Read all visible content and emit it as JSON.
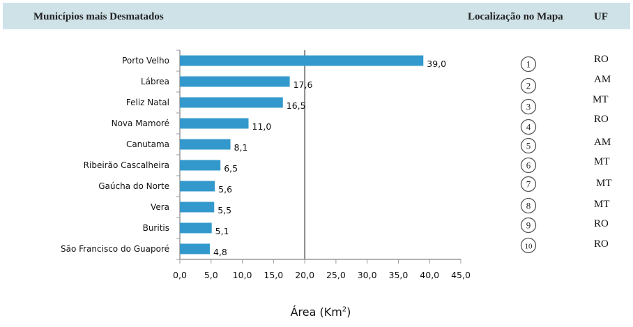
{
  "header": {
    "left_title": "Municípios mais Desmatados",
    "map_title": "Localização no Mapa",
    "uf_title": "UF"
  },
  "colors": {
    "bar": "#3399cc",
    "header_bg": "#cfe2e8",
    "grid": "#999999"
  },
  "chart_data": {
    "type": "bar",
    "orientation": "horizontal",
    "categories": [
      "Porto Velho",
      "Lábrea",
      "Feliz Natal",
      "Nova Mamoré",
      "Canutama",
      "Ribeirão Cascalheira",
      "Gaúcha do Norte",
      "Vera",
      "Buritis",
      "São Francisco do Guaporé"
    ],
    "values": [
      39.0,
      17.6,
      16.5,
      11.0,
      8.1,
      6.5,
      5.6,
      5.5,
      5.1,
      4.8
    ],
    "value_labels": [
      "39,0",
      "17,6",
      "16,5",
      "11,0",
      "8,1",
      "6,5",
      "5,6",
      "5,5",
      "5,1",
      "4,8"
    ],
    "xticks": [
      "0,0",
      "5,0",
      "10,0",
      "15,0",
      "20,0",
      "25,0",
      "30,0",
      "35,0",
      "40,0",
      "45,0"
    ],
    "xlim": [
      0,
      45
    ],
    "xlabel": "Área (Km",
    "xlabel_sup": "2",
    "xlabel_suffix": ")",
    "grid": false
  },
  "map_locations": [
    {
      "number": "1",
      "uf": "RO"
    },
    {
      "number": "2",
      "uf": "AM"
    },
    {
      "number": "3",
      "uf": "MT"
    },
    {
      "number": "4",
      "uf": "RO"
    },
    {
      "number": "5",
      "uf": "AM"
    },
    {
      "number": "6",
      "uf": "MT"
    },
    {
      "number": "7",
      "uf": "MT"
    },
    {
      "number": "8",
      "uf": "MT"
    },
    {
      "number": "9",
      "uf": "RO"
    },
    {
      "number": "10",
      "uf": "RO"
    }
  ]
}
